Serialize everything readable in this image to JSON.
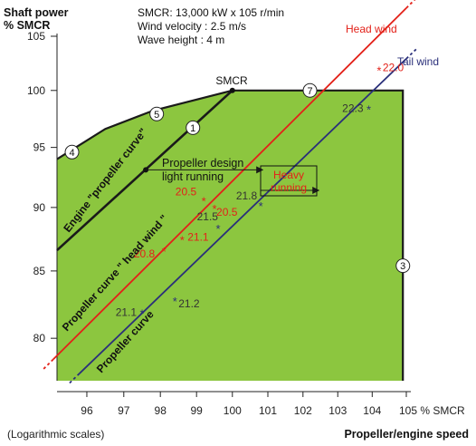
{
  "chart_data": {
    "type": "line",
    "scales_note": "(Logarithmic scales)",
    "y_axis": {
      "title_line1": "Shaft power",
      "title_line2": "% SMCR",
      "range": [
        77,
        105
      ],
      "log": true,
      "ticks": [
        "80",
        "85",
        "90",
        "95",
        "100",
        "105"
      ],
      "tick_values": [
        80,
        85,
        90,
        95,
        100,
        105
      ]
    },
    "x_axis": {
      "title": "Propeller/engine speed",
      "range": [
        95.2,
        105
      ],
      "log": true,
      "ticks": [
        "96",
        "97",
        "98",
        "99",
        "100",
        "101",
        "102",
        "103",
        "104",
        "105 % SMCR"
      ],
      "tick_values": [
        96,
        97,
        98,
        99,
        100,
        101,
        102,
        103,
        104,
        105
      ]
    },
    "info": {
      "line1": "SMCR: 13,000 kW x 105 r/min",
      "line2": "Wind velocity :  2.5 m/s",
      "line3": "Wave height  :  4 m"
    },
    "colors": {
      "envelope_fill": "#8cc63f",
      "head_wind": "#e32119",
      "tail_wind": "#2a2f7a",
      "engine_line": "#1a1a1a",
      "speed_text": "#e32119"
    },
    "envelope": {
      "x": [
        95.2,
        95.2,
        96.5,
        97.8,
        100,
        104.9,
        104.9
      ],
      "y": [
        77,
        94,
        96.6,
        98.2,
        100,
        100,
        77
      ]
    },
    "engine_curve": {
      "label": "Engine \"propeller curve\"",
      "x": [
        95.2,
        100
      ],
      "y": [
        86.6,
        100
      ]
    },
    "head_wind_curve": {
      "label": "Propeller curve \" head wind \"",
      "x": [
        95.1,
        105
      ],
      "y": [
        78.5,
        107.7
      ]
    },
    "tail_wind_curve": {
      "label": "Propeller curve",
      "x": [
        95.8,
        105
      ],
      "y": [
        77.5,
        102.9
      ]
    },
    "series_labels": {
      "head_wind": "Head wind",
      "tail_wind": "Tail wind"
    },
    "smcr_label": "SMCR",
    "design_label_line1": "Propeller design",
    "design_label_line2": "light running",
    "heavy_label_line1": "Heavy",
    "heavy_label_line2": "running",
    "numbered_points": [
      {
        "label": "1",
        "x": 98.9,
        "y": 96.7
      },
      {
        "label": "3",
        "x": 104.9,
        "y": 85.4
      },
      {
        "label": "4",
        "x": 95.6,
        "y": 94.6
      },
      {
        "label": "5",
        "x": 97.9,
        "y": 97.9
      },
      {
        "label": "7",
        "x": 102.2,
        "y": 100
      }
    ],
    "design_arrow": {
      "from_x": 97.6,
      "to_x": 100.8,
      "y": 93.1
    },
    "heavy_arrow": {
      "from_x": 100.8,
      "to_x": 102.4,
      "y": 91.4
    },
    "speed_points_head_wind": [
      {
        "label": "20.5",
        "x": 99.2,
        "y": 90.6
      },
      {
        "label": "20.5",
        "x": 99.5,
        "y": 90.0
      },
      {
        "label": "21.1",
        "x": 98.6,
        "y": 87.5
      },
      {
        "label": "20.8",
        "x": 98.1,
        "y": 86.6
      },
      {
        "label": "22.0",
        "x": 104.2,
        "y": 101.9
      }
    ],
    "speed_points_tail_wind": [
      {
        "label": "21.8",
        "x": 100.8,
        "y": 90.2
      },
      {
        "label": "21.5",
        "x": 99.6,
        "y": 88.4
      },
      {
        "label": "21.1",
        "x": 97.5,
        "y": 81.9
      },
      {
        "label": "21.2",
        "x": 98.4,
        "y": 82.8
      },
      {
        "label": "22.3",
        "x": 103.9,
        "y": 98.4
      }
    ]
  }
}
